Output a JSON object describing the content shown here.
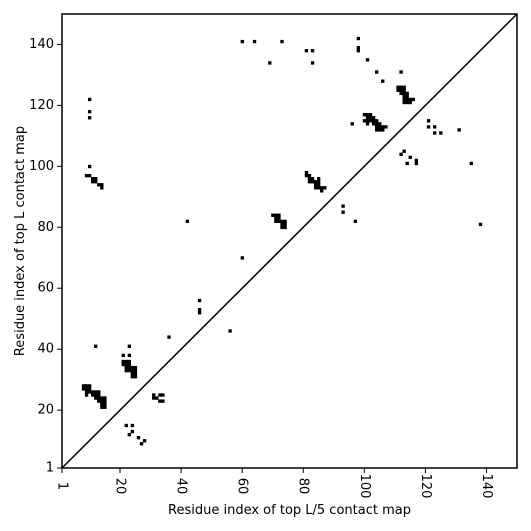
{
  "chart_data": {
    "type": "heatmap",
    "xlabel": "Residue index of top L/5 contact map",
    "ylabel": "Residue index of top L contact map",
    "xlim": [
      1,
      150
    ],
    "ylim": [
      1,
      150
    ],
    "x_ticks": [
      1,
      20,
      40,
      60,
      80,
      100,
      120,
      140
    ],
    "y_ticks": [
      1,
      20,
      40,
      60,
      80,
      100,
      120,
      140
    ],
    "diagonal": true,
    "grid": false,
    "cell_color": "#000000",
    "line_color": "#000000",
    "contacts_upper_left": [
      [
        10,
        122
      ],
      [
        10,
        118
      ],
      [
        10,
        116
      ],
      [
        10,
        100
      ],
      [
        9,
        97
      ],
      [
        10,
        97
      ],
      [
        11,
        96
      ],
      [
        11,
        95
      ],
      [
        12,
        96
      ],
      [
        12,
        95
      ],
      [
        13,
        94
      ],
      [
        14,
        94
      ],
      [
        14,
        93
      ],
      [
        42,
        82
      ],
      [
        60,
        141
      ],
      [
        64,
        141
      ],
      [
        69,
        134
      ],
      [
        73,
        141
      ],
      [
        81,
        138
      ],
      [
        83,
        138
      ],
      [
        83,
        134
      ],
      [
        60,
        70
      ],
      [
        70,
        84
      ],
      [
        71,
        84
      ],
      [
        72,
        84
      ],
      [
        71,
        83
      ],
      [
        72,
        83
      ],
      [
        71,
        82
      ],
      [
        72,
        82
      ],
      [
        73,
        82
      ],
      [
        74,
        82
      ],
      [
        73,
        81
      ],
      [
        74,
        81
      ],
      [
        73,
        80
      ],
      [
        74,
        80
      ],
      [
        81,
        98
      ],
      [
        81,
        97
      ],
      [
        82,
        97
      ],
      [
        82,
        96
      ],
      [
        83,
        96
      ],
      [
        82,
        95
      ],
      [
        83,
        95
      ],
      [
        84,
        95
      ],
      [
        85,
        95
      ],
      [
        85,
        96
      ],
      [
        84,
        94
      ],
      [
        85,
        94
      ],
      [
        84,
        93
      ],
      [
        85,
        93
      ],
      [
        86,
        93
      ],
      [
        87,
        93
      ],
      [
        86,
        92
      ],
      [
        93,
        87
      ],
      [
        93,
        85
      ],
      [
        96,
        114
      ],
      [
        97,
        82
      ],
      [
        98,
        142
      ],
      [
        98,
        139
      ],
      [
        98,
        138
      ],
      [
        101,
        135
      ],
      [
        100,
        117
      ],
      [
        101,
        117
      ],
      [
        102,
        117
      ],
      [
        101,
        116
      ],
      [
        102,
        116
      ],
      [
        103,
        116
      ],
      [
        100,
        115
      ],
      [
        101,
        115
      ],
      [
        102,
        115
      ],
      [
        103,
        115
      ],
      [
        104,
        115
      ],
      [
        101,
        114
      ],
      [
        103,
        114
      ],
      [
        104,
        114
      ],
      [
        105,
        114
      ],
      [
        104,
        113
      ],
      [
        105,
        113
      ],
      [
        106,
        113
      ],
      [
        104,
        112
      ],
      [
        105,
        112
      ],
      [
        106,
        112
      ],
      [
        107,
        113
      ],
      [
        104,
        131
      ],
      [
        106,
        128
      ],
      [
        111,
        126
      ],
      [
        112,
        126
      ],
      [
        113,
        126
      ],
      [
        111,
        125
      ],
      [
        112,
        125
      ],
      [
        113,
        125
      ],
      [
        112,
        124
      ],
      [
        113,
        124
      ],
      [
        114,
        124
      ],
      [
        113,
        123
      ],
      [
        114,
        123
      ],
      [
        113,
        122
      ],
      [
        114,
        122
      ],
      [
        115,
        122
      ],
      [
        116,
        122
      ],
      [
        113,
        121
      ],
      [
        114,
        121
      ],
      [
        115,
        121
      ],
      [
        112,
        131
      ],
      [
        112,
        104
      ],
      [
        113,
        105
      ],
      [
        114,
        101
      ],
      [
        115,
        103
      ],
      [
        117,
        102
      ],
      [
        117,
        101
      ],
      [
        121,
        115
      ],
      [
        121,
        113
      ],
      [
        123,
        113
      ],
      [
        123,
        111
      ],
      [
        125,
        111
      ],
      [
        131,
        112
      ],
      [
        135,
        101
      ],
      [
        138,
        81
      ]
    ],
    "contacts_lower_right": [
      [
        8,
        28
      ],
      [
        9,
        28
      ],
      [
        10,
        28
      ],
      [
        8,
        27
      ],
      [
        9,
        27
      ],
      [
        10,
        27
      ],
      [
        9,
        26
      ],
      [
        10,
        26
      ],
      [
        11,
        26
      ],
      [
        12,
        26
      ],
      [
        13,
        26
      ],
      [
        9,
        25
      ],
      [
        11,
        25
      ],
      [
        12,
        25
      ],
      [
        13,
        25
      ],
      [
        12,
        24
      ],
      [
        13,
        24
      ],
      [
        14,
        24
      ],
      [
        13,
        23
      ],
      [
        14,
        23
      ],
      [
        15,
        23
      ],
      [
        14,
        22
      ],
      [
        15,
        22
      ],
      [
        14,
        21
      ],
      [
        15,
        21
      ],
      [
        15,
        24
      ],
      [
        12,
        41
      ],
      [
        21,
        38
      ],
      [
        23,
        38
      ],
      [
        23,
        41
      ],
      [
        21,
        36
      ],
      [
        22,
        36
      ],
      [
        23,
        36
      ],
      [
        21,
        35
      ],
      [
        22,
        35
      ],
      [
        23,
        35
      ],
      [
        22,
        34
      ],
      [
        23,
        34
      ],
      [
        24,
        34
      ],
      [
        25,
        34
      ],
      [
        22,
        33
      ],
      [
        23,
        33
      ],
      [
        24,
        33
      ],
      [
        25,
        33
      ],
      [
        24,
        32
      ],
      [
        25,
        32
      ],
      [
        24,
        31
      ],
      [
        25,
        31
      ],
      [
        22,
        15
      ],
      [
        24,
        15
      ],
      [
        23,
        12
      ],
      [
        24,
        13
      ],
      [
        26,
        11
      ],
      [
        27,
        9
      ],
      [
        28,
        10
      ],
      [
        31,
        25
      ],
      [
        31,
        24
      ],
      [
        32,
        24
      ],
      [
        33,
        25
      ],
      [
        33,
        23
      ],
      [
        34,
        25
      ],
      [
        34,
        23
      ],
      [
        36,
        44
      ],
      [
        46,
        56
      ],
      [
        46,
        53
      ],
      [
        46,
        52
      ],
      [
        56,
        46
      ]
    ]
  }
}
